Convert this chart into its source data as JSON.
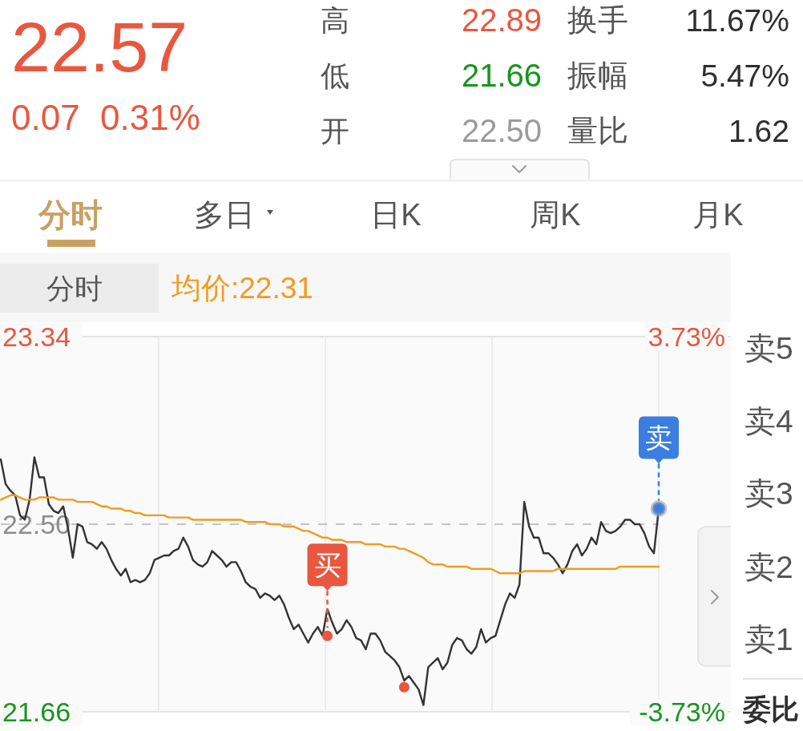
{
  "chart_data": [
    {
      "type": "other",
      "annotations": [
        "22.57",
        "0.07",
        "0.31%",
        "高",
        "22.89",
        "换手",
        "11.67%",
        "低",
        "21.66",
        "振幅",
        "5.47%",
        "开",
        "22.50",
        "量比",
        "1.62",
        "分时",
        "多日",
        "日K",
        "周K",
        "月K"
      ]
    },
    {
      "type": "line",
      "title": "分时",
      "legend": "top left",
      "grid": "x",
      "categories": [
        null,
        null,
        null,
        null,
        null,
        null,
        null,
        null,
        null,
        null,
        null,
        null,
        null,
        null,
        null,
        null,
        null,
        null,
        null,
        null,
        null,
        null,
        null,
        null,
        null,
        null,
        null,
        null,
        null,
        null,
        null,
        null,
        null,
        null,
        null,
        null,
        null,
        null,
        null,
        null,
        null,
        null,
        null,
        null,
        null,
        null,
        null,
        null,
        null,
        null,
        null,
        null,
        null,
        null,
        null,
        null,
        null,
        null,
        null,
        null,
        null,
        null,
        null,
        null,
        null,
        null,
        null,
        null,
        null,
        null,
        null,
        null,
        null,
        null,
        null,
        null,
        null,
        null,
        null,
        null,
        null,
        null,
        null,
        null,
        null,
        null,
        null,
        null,
        null,
        null,
        null,
        null,
        null,
        null,
        null,
        null,
        null,
        null,
        null,
        null,
        null,
        null,
        null,
        null,
        null,
        null,
        null,
        null,
        null,
        null,
        null,
        null,
        null,
        null,
        null,
        null,
        null,
        null,
        null,
        null,
        null,
        null,
        null,
        null,
        null,
        null,
        null,
        null,
        null,
        null,
        null,
        null,
        null,
        null,
        null,
        null,
        null,
        null
      ],
      "series": [
        {
          "color": "#333333",
          "values": [
            22.79,
            22.68,
            22.65,
            22.63,
            22.54,
            22.52,
            22.61,
            22.8,
            22.71,
            22.71,
            22.59,
            22.56,
            22.55,
            22.58,
            22.48,
            22.35,
            22.5,
            22.49,
            22.42,
            22.41,
            22.39,
            22.42,
            22.39,
            22.34,
            22.3,
            22.27,
            22.3,
            22.24,
            22.25,
            22.24,
            22.25,
            22.28,
            22.34,
            22.35,
            22.36,
            22.36,
            22.38,
            22.39,
            22.44,
            22.4,
            22.34,
            22.32,
            22.31,
            22.33,
            22.38,
            22.36,
            22.34,
            22.31,
            22.33,
            22.33,
            22.29,
            22.24,
            22.22,
            22.21,
            22.17,
            22.19,
            22.18,
            22.16,
            22.18,
            22.14,
            22.08,
            22.03,
            22.05,
            22.01,
            21.97,
            22.01,
            22.04,
            22.0,
            22.12,
            22.06,
            22.01,
            22.03,
            22.07,
            22.04,
            21.99,
            21.98,
            21.94,
            22.01,
            22.01,
            21.98,
            21.93,
            21.91,
            21.89,
            21.86,
            21.8,
            21.82,
            21.79,
            21.76,
            21.69,
            21.86,
            21.88,
            21.9,
            21.85,
            21.88,
            21.96,
            21.99,
            21.98,
            21.94,
            21.92,
            21.95,
            22.03,
            21.97,
            21.99,
            22.0,
            22.07,
            22.14,
            22.19,
            22.17,
            22.23,
            22.6,
            22.49,
            22.44,
            22.44,
            22.37,
            22.37,
            22.35,
            22.32,
            22.28,
            22.32,
            22.38,
            22.41,
            22.36,
            22.39,
            22.44,
            22.41,
            22.51,
            22.47,
            22.46,
            22.47,
            22.49,
            22.52,
            22.52,
            22.5,
            22.5,
            22.46,
            22.4,
            22.37,
            22.57
          ]
        },
        {
          "name": "均价:22.31",
          "color": "#f39a21",
          "values": [
            22.61,
            22.62,
            22.63,
            22.63,
            22.62,
            22.61,
            22.61,
            22.61,
            22.62,
            22.62,
            22.62,
            22.62,
            22.61,
            22.61,
            22.61,
            22.61,
            22.6,
            22.6,
            22.6,
            22.6,
            22.59,
            22.58,
            22.58,
            22.57,
            22.57,
            22.57,
            22.56,
            22.56,
            22.55,
            22.55,
            22.54,
            22.54,
            22.54,
            22.54,
            22.54,
            22.53,
            22.53,
            22.53,
            22.53,
            22.53,
            22.52,
            22.52,
            22.52,
            22.52,
            22.52,
            22.52,
            22.52,
            22.52,
            22.52,
            22.52,
            22.52,
            22.51,
            22.51,
            22.51,
            22.51,
            22.51,
            22.5,
            22.5,
            22.5,
            22.49,
            22.49,
            22.49,
            22.48,
            22.47,
            22.47,
            22.46,
            22.45,
            22.44,
            22.44,
            22.43,
            22.43,
            22.43,
            22.42,
            22.42,
            22.42,
            22.42,
            22.41,
            22.41,
            22.41,
            22.41,
            22.4,
            22.4,
            22.4,
            22.39,
            22.39,
            22.38,
            22.37,
            22.36,
            22.35,
            22.33,
            22.32,
            22.32,
            22.32,
            22.31,
            22.31,
            22.31,
            22.31,
            22.31,
            22.3,
            22.3,
            22.3,
            22.3,
            22.3,
            22.29,
            22.28,
            22.28,
            22.28,
            22.28,
            22.28,
            22.29,
            22.29,
            22.29,
            22.29,
            22.29,
            22.29,
            22.29,
            22.3,
            22.3,
            22.3,
            22.3,
            22.3,
            22.3,
            22.3,
            22.3,
            22.3,
            22.3,
            22.3,
            22.3,
            22.3,
            22.31,
            22.31,
            22.31,
            22.31,
            22.31,
            22.31,
            22.31,
            22.31,
            22.31
          ]
        },
        {
          "type": "scatter",
          "marker": "circle",
          "color": "#e9573f",
          "values": [
            null,
            null,
            null,
            null,
            null,
            null,
            null,
            null,
            null,
            null,
            null,
            null,
            null,
            null,
            null,
            null,
            null,
            null,
            null,
            null,
            null,
            null,
            null,
            null,
            null,
            null,
            null,
            null,
            null,
            null,
            null,
            null,
            null,
            null,
            null,
            null,
            null,
            null,
            null,
            null,
            null,
            null,
            null,
            null,
            null,
            null,
            null,
            null,
            null,
            null,
            null,
            null,
            null,
            null,
            null,
            null,
            null,
            null,
            null,
            null,
            null,
            null,
            null,
            null,
            null,
            null,
            null,
            null,
            22.0,
            null,
            null,
            null,
            null,
            null,
            null,
            null,
            null,
            null,
            null,
            null,
            null,
            null,
            null,
            null,
            21.77,
            null,
            null,
            null,
            null,
            null,
            null,
            null,
            null,
            null,
            null,
            null,
            null,
            null,
            null,
            null,
            null,
            null,
            null,
            null,
            null,
            null,
            null,
            null,
            null,
            null,
            null,
            null,
            null,
            null,
            null,
            null,
            null,
            null,
            null,
            null,
            null,
            null,
            null,
            null,
            null,
            null,
            null,
            null,
            null,
            null,
            null,
            null,
            null,
            null,
            null,
            null,
            null,
            null
          ],
          "value_labels": [
            null,
            null,
            null,
            null,
            null,
            null,
            null,
            null,
            null,
            null,
            null,
            null,
            null,
            null,
            null,
            null,
            null,
            null,
            null,
            null,
            null,
            null,
            null,
            null,
            null,
            null,
            null,
            null,
            null,
            null,
            null,
            null,
            null,
            null,
            null,
            null,
            null,
            null,
            null,
            null,
            null,
            null,
            null,
            null,
            null,
            null,
            null,
            null,
            null,
            null,
            null,
            null,
            null,
            null,
            null,
            null,
            null,
            null,
            null,
            null,
            null,
            null,
            null,
            null,
            null,
            null,
            null,
            null,
            "买",
            null,
            null,
            null,
            null,
            null,
            null,
            null,
            null,
            null,
            null,
            null,
            null,
            null,
            null,
            null,
            null,
            null,
            null,
            null,
            null,
            null,
            null,
            null,
            null,
            null,
            null,
            null,
            null,
            null,
            null,
            null,
            null,
            null,
            null,
            null,
            null,
            null,
            null,
            null,
            null,
            null,
            null,
            null,
            null,
            null,
            null,
            null,
            null,
            null,
            null,
            null,
            null,
            null,
            null,
            null,
            null,
            null,
            null,
            null,
            null,
            null,
            null,
            null,
            null,
            null,
            null,
            null,
            null,
            null
          ]
        },
        {
          "type": "scatter",
          "marker": "circle",
          "color": "#3b7de0",
          "values": [
            null,
            null,
            null,
            null,
            null,
            null,
            null,
            null,
            null,
            null,
            null,
            null,
            null,
            null,
            null,
            null,
            null,
            null,
            null,
            null,
            null,
            null,
            null,
            null,
            null,
            null,
            null,
            null,
            null,
            null,
            null,
            null,
            null,
            null,
            null,
            null,
            null,
            null,
            null,
            null,
            null,
            null,
            null,
            null,
            null,
            null,
            null,
            null,
            null,
            null,
            null,
            null,
            null,
            null,
            null,
            null,
            null,
            null,
            null,
            null,
            null,
            null,
            null,
            null,
            null,
            null,
            null,
            null,
            null,
            null,
            null,
            null,
            null,
            null,
            null,
            null,
            null,
            null,
            null,
            null,
            null,
            null,
            null,
            null,
            null,
            null,
            null,
            null,
            null,
            null,
            null,
            null,
            null,
            null,
            null,
            null,
            null,
            null,
            null,
            null,
            null,
            null,
            null,
            null,
            null,
            null,
            null,
            null,
            null,
            null,
            null,
            null,
            null,
            null,
            null,
            null,
            null,
            null,
            null,
            null,
            null,
            null,
            null,
            null,
            null,
            null,
            null,
            null,
            null,
            null,
            null,
            null,
            null,
            null,
            null,
            null,
            null,
            22.57
          ],
          "value_labels": [
            null,
            null,
            null,
            null,
            null,
            null,
            null,
            null,
            null,
            null,
            null,
            null,
            null,
            null,
            null,
            null,
            null,
            null,
            null,
            null,
            null,
            null,
            null,
            null,
            null,
            null,
            null,
            null,
            null,
            null,
            null,
            null,
            null,
            null,
            null,
            null,
            null,
            null,
            null,
            null,
            null,
            null,
            null,
            null,
            null,
            null,
            null,
            null,
            null,
            null,
            null,
            null,
            null,
            null,
            null,
            null,
            null,
            null,
            null,
            null,
            null,
            null,
            null,
            null,
            null,
            null,
            null,
            null,
            null,
            null,
            null,
            null,
            null,
            null,
            null,
            null,
            null,
            null,
            null,
            null,
            null,
            null,
            null,
            null,
            null,
            null,
            null,
            null,
            null,
            null,
            null,
            null,
            null,
            null,
            null,
            null,
            null,
            null,
            null,
            null,
            null,
            null,
            null,
            null,
            null,
            null,
            null,
            null,
            null,
            null,
            null,
            null,
            null,
            null,
            null,
            null,
            null,
            null,
            null,
            null,
            null,
            null,
            null,
            null,
            null,
            null,
            null,
            null,
            null,
            null,
            null,
            null,
            null,
            null,
            null,
            null,
            null,
            "卖"
          ]
        }
      ],
      "ylim": [
        21.66,
        23.34
      ],
      "yticks": [
        23.34,
        {
          "value": 22.5,
          "label": "22.50"
        },
        21.66
      ],
      "y2lim": [
        -3.73,
        3.73
      ],
      "y2ticks": [
        {
          "value": 3.73,
          "label": "3.73%"
        },
        {
          "value": -3.73,
          "label": "-3.73%"
        }
      ],
      "ref_lines": [
        {
          "axis": "y",
          "value": 22.5,
          "color": "#b3b3b3",
          "line_style": "dashed"
        }
      ]
    },
    {
      "type": "other",
      "annotations": [
        "卖5",
        "卖4",
        "卖3",
        "卖2",
        "卖1",
        "委比"
      ]
    }
  ]
}
